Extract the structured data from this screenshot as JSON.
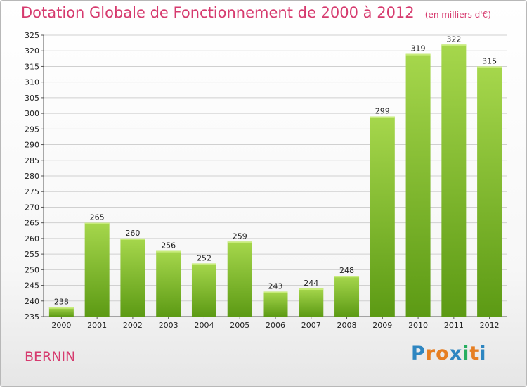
{
  "title": "Dotation Globale de Fonctionnement de 2000 à 2012",
  "subtitle": "(en milliers d'€)",
  "commune": "BERNIN",
  "brand": {
    "letters": [
      "P",
      "r",
      "o",
      "x",
      "i",
      "t",
      "i"
    ],
    "colors": [
      "#2e86c1",
      "#e67e22",
      "#e67e22",
      "#2e86c1",
      "#27ae60",
      "#e67e22",
      "#2e86c1"
    ]
  },
  "colors": {
    "title": "#d63a6e",
    "bar_light": "#a6d74c",
    "bar_dark": "#5c9a14",
    "grid": "#d0d0d0"
  },
  "chart_data": {
    "type": "bar",
    "categories": [
      "2000",
      "2001",
      "2002",
      "2003",
      "2004",
      "2005",
      "2006",
      "2007",
      "2008",
      "2009",
      "2010",
      "2011",
      "2012"
    ],
    "values": [
      238,
      265,
      260,
      256,
      252,
      259,
      243,
      244,
      248,
      299,
      319,
      322,
      315
    ],
    "title": "Dotation Globale de Fonctionnement de 2000 à 2012",
    "ylim": [
      235,
      325
    ],
    "yticks": [
      235,
      240,
      245,
      250,
      255,
      260,
      265,
      270,
      275,
      280,
      285,
      290,
      295,
      300,
      305,
      310,
      315,
      320,
      325
    ],
    "grid": true
  }
}
